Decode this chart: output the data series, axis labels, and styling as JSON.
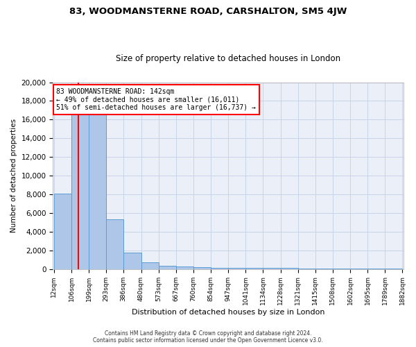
{
  "title1": "83, WOODMANSTERNE ROAD, CARSHALTON, SM5 4JW",
  "title2": "Size of property relative to detached houses in London",
  "xlabel": "Distribution of detached houses by size in London",
  "ylabel": "Number of detached properties",
  "annotation_line1": "83 WOODMANSTERNE ROAD: 142sqm",
  "annotation_line2": "← 49% of detached houses are smaller (16,011)",
  "annotation_line3": "51% of semi-detached houses are larger (16,737) →",
  "footer1": "Contains HM Land Registry data © Crown copyright and database right 2024.",
  "footer2": "Contains public sector information licensed under the Open Government Licence v3.0.",
  "property_size": 142,
  "bin_edges": [
    12,
    106,
    199,
    293,
    386,
    480,
    573,
    667,
    760,
    854,
    947,
    1041,
    1134,
    1228,
    1321,
    1415,
    1508,
    1602,
    1695,
    1789,
    1882
  ],
  "bin_counts": [
    8100,
    16700,
    16700,
    5300,
    1750,
    750,
    350,
    250,
    200,
    150,
    130,
    110,
    100,
    90,
    80,
    60,
    50,
    40,
    30,
    25
  ],
  "bar_color": "#aec6e8",
  "bar_edge_color": "#5b9bd5",
  "vline_color": "red",
  "annotation_box_edge": "red",
  "grid_color": "#c8d4e8",
  "bg_color": "#eaeff8",
  "ylim": [
    0,
    20000
  ],
  "yticks": [
    0,
    2000,
    4000,
    6000,
    8000,
    10000,
    12000,
    14000,
    16000,
    18000,
    20000
  ]
}
